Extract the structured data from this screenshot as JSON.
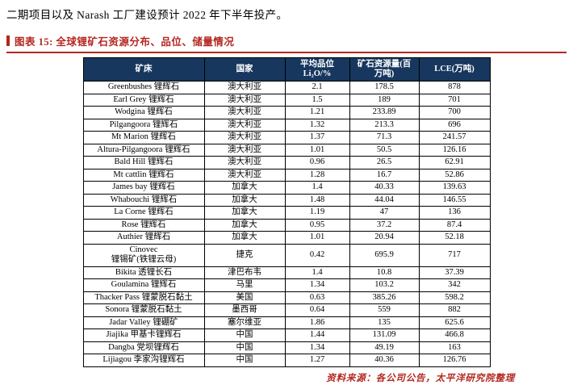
{
  "page": {
    "intro_text": "二期项目以及 Narash 工厂建设预计 2022 年下半年投产。",
    "figure_title": "图表 15: 全球锂矿石资源分布、品位、储量情况",
    "source_note": "资料来源：各公司公告，太平洋研究院整理"
  },
  "colors": {
    "accent_red": "#B4261F",
    "header_bg": "#17375E",
    "header_text": "#FFFFFF",
    "table_border": "#000000"
  },
  "table": {
    "headers": [
      "矿床",
      "国家",
      "平均品位\nLi₂O/%",
      "矿石资源量(百\n万吨)",
      "LCE(万吨)"
    ],
    "rows": [
      [
        "Greenbushes 锂辉石",
        "澳大利亚",
        "2.1",
        "178.5",
        "878"
      ],
      [
        "Earl Grey 锂辉石",
        "澳大利亚",
        "1.5",
        "189",
        "701"
      ],
      [
        "Wodgina 锂辉石",
        "澳大利亚",
        "1.21",
        "233.89",
        "700"
      ],
      [
        "Pilgangoora 锂辉石",
        "澳大利亚",
        "1.32",
        "213.3",
        "696"
      ],
      [
        "Mt Marion 锂辉石",
        "澳大利亚",
        "1.37",
        "71.3",
        "241.57"
      ],
      [
        "Altura-Pilgangoora 锂辉石",
        "澳大利亚",
        "1.01",
        "50.5",
        "126.16"
      ],
      [
        "Bald Hill 锂辉石",
        "澳大利亚",
        "0.96",
        "26.5",
        "62.91"
      ],
      [
        "Mt cattlin 锂辉石",
        "澳大利亚",
        "1.28",
        "16.7",
        "52.86"
      ],
      [
        "James bay 锂辉石",
        "加拿大",
        "1.4",
        "40.33",
        "139.63"
      ],
      [
        "Whabouchi 锂辉石",
        "加拿大",
        "1.48",
        "44.04",
        "146.55"
      ],
      [
        "La Corne 锂辉石",
        "加拿大",
        "1.19",
        "47",
        "136"
      ],
      [
        "Rose 锂辉石",
        "加拿大",
        "0.95",
        "37.2",
        "87.4"
      ],
      [
        "Authier 锂辉石",
        "加拿大",
        "1.01",
        "20.94",
        "52.18"
      ],
      [
        "Cinovec\n锂锡矿(铁锂云母)",
        "捷克",
        "0.42",
        "695.9",
        "717"
      ],
      [
        "Bikita 透锂长石",
        "津巴布韦",
        "1.4",
        "10.8",
        "37.39"
      ],
      [
        "Goulamina 锂辉石",
        "马里",
        "1.34",
        "103.2",
        "342"
      ],
      [
        "Thacker Pass 锂蒙脱石黏土",
        "美国",
        "0.63",
        "385.26",
        "598.2"
      ],
      [
        "Sonora 锂蒙脱石黏土",
        "墨西哥",
        "0.64",
        "559",
        "882"
      ],
      [
        "Jadar Valley 锂硼矿",
        "塞尔维亚",
        "1.86",
        "135",
        "625.6"
      ],
      [
        "Jiajika 甲基卡锂辉石",
        "中国",
        "1.44",
        "131.09",
        "466.8"
      ],
      [
        "Dangba 党坝锂辉石",
        "中国",
        "1.34",
        "49.19",
        "163"
      ],
      [
        "Lijiagou 李家沟锂辉石",
        "中国",
        "1.27",
        "40.36",
        "126.76"
      ]
    ]
  }
}
